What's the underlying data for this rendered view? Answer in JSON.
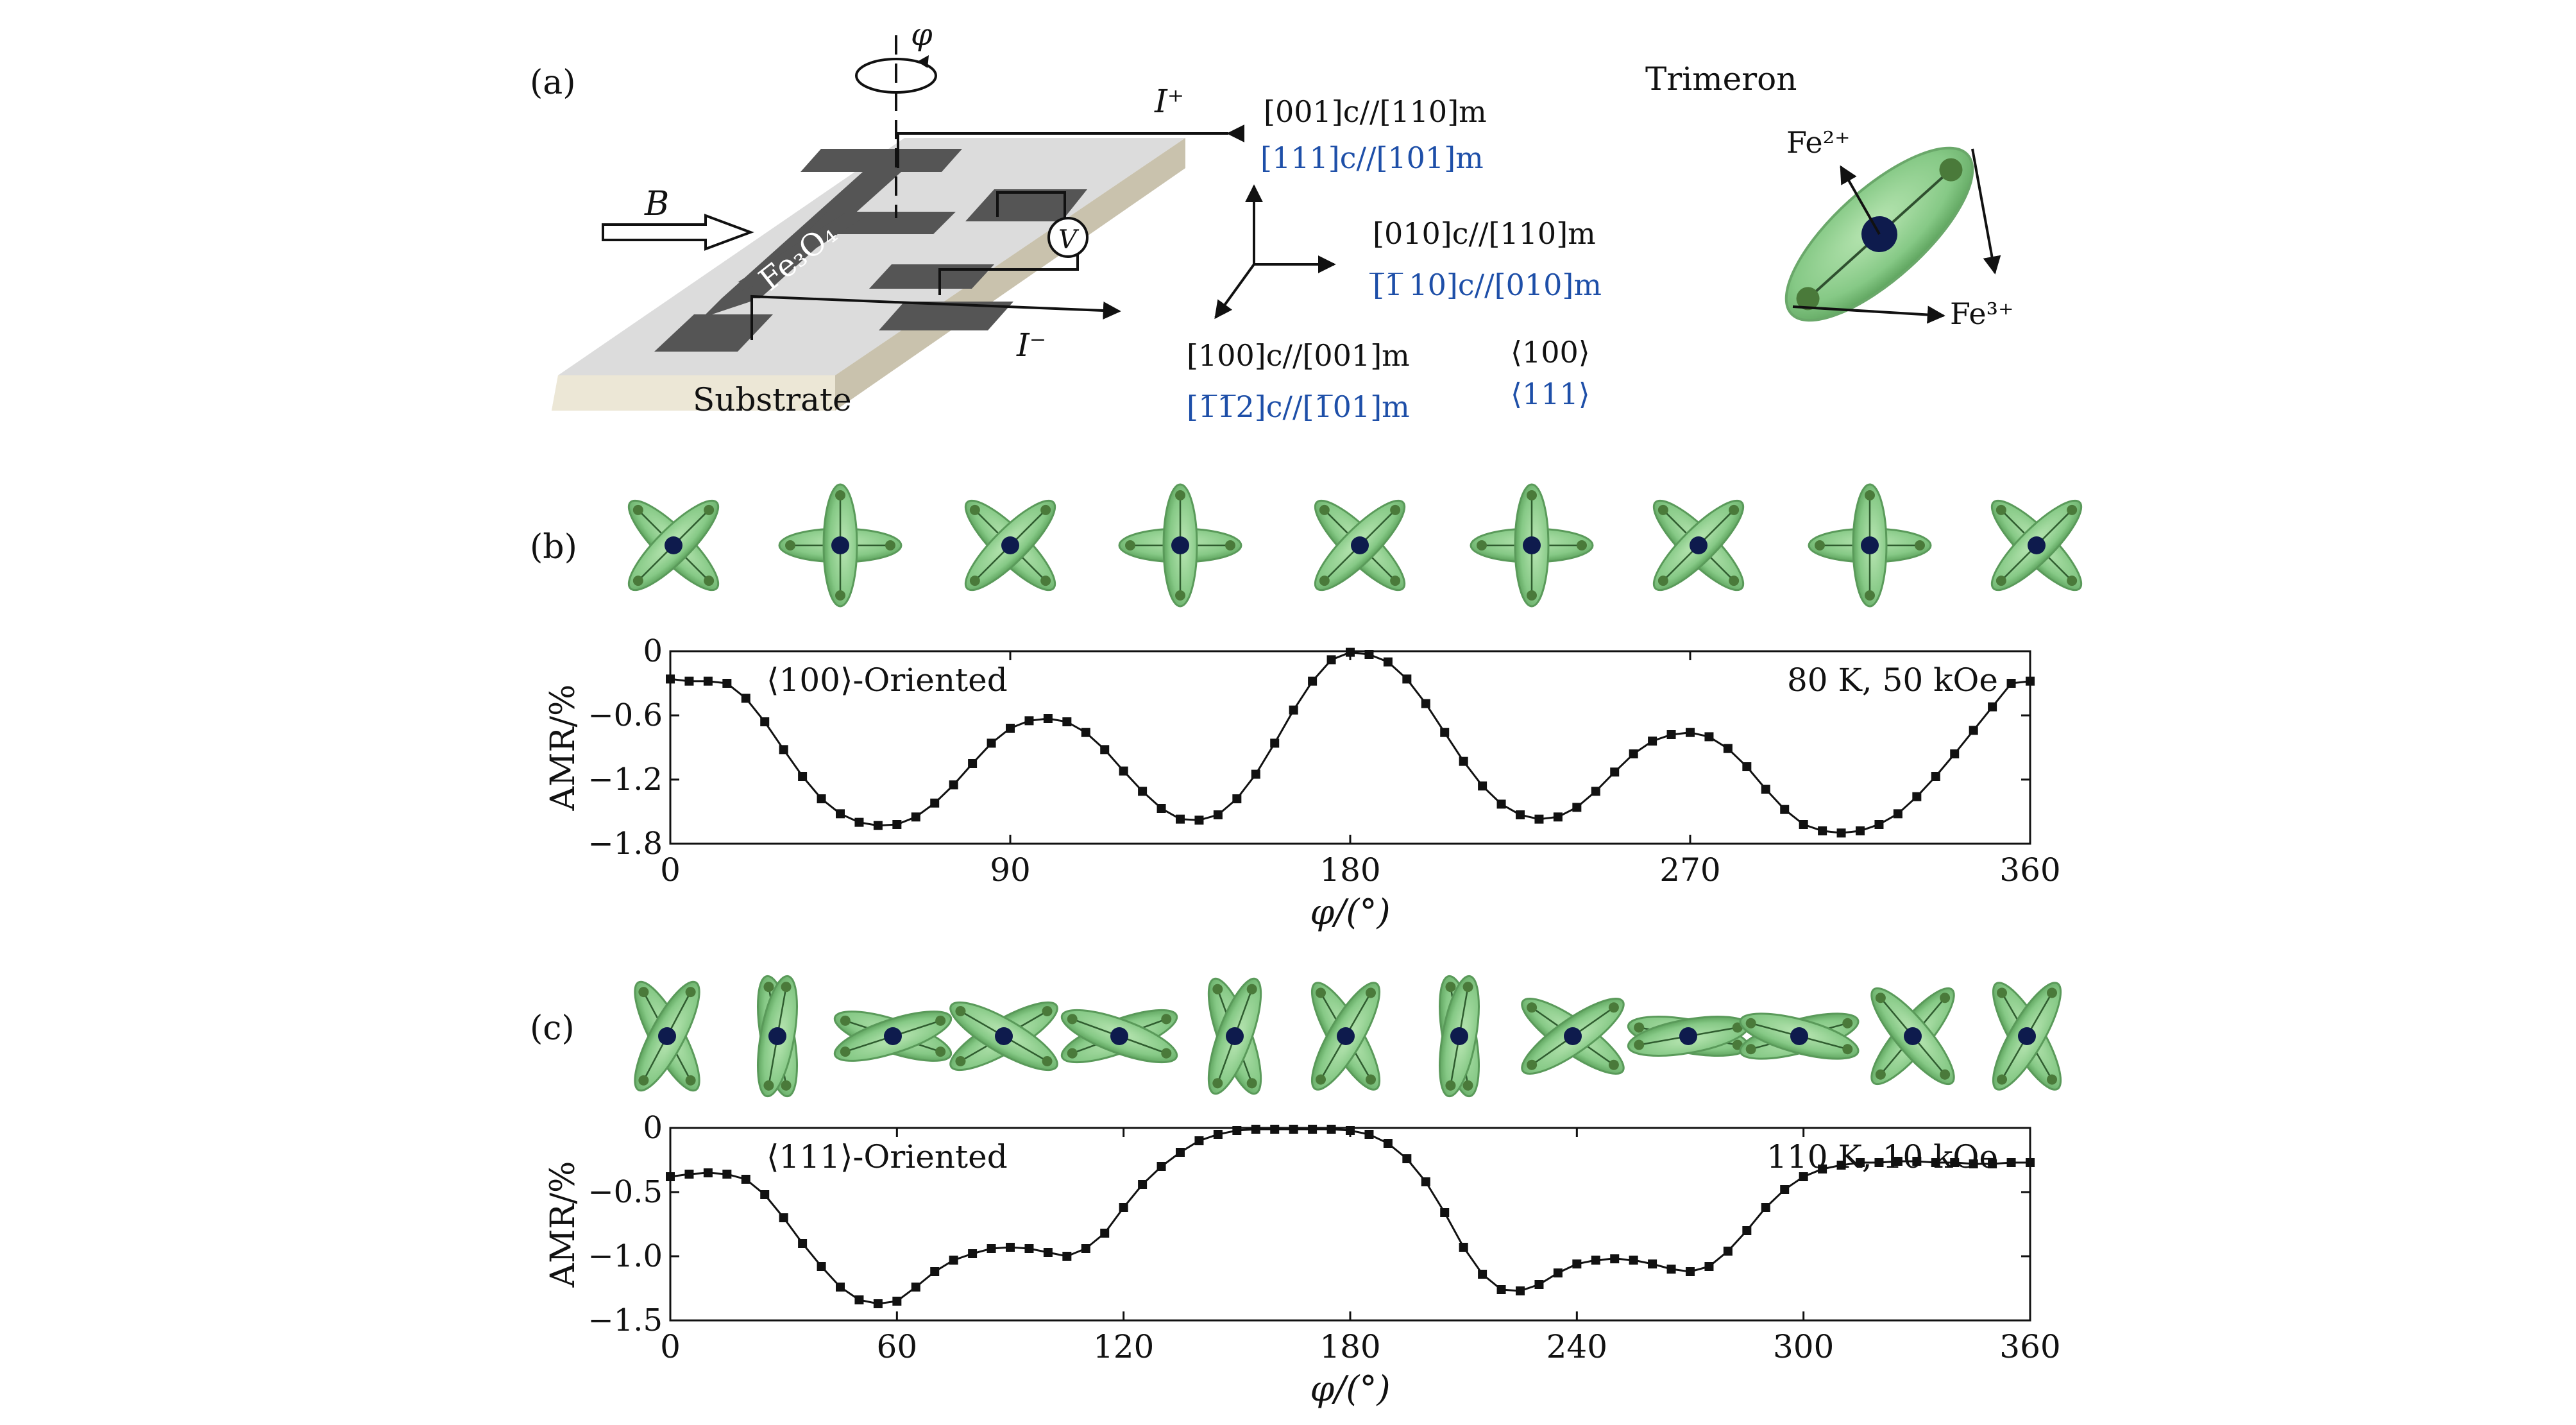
{
  "panel_a": {
    "panel_label": "(a)",
    "phi_symbol": "φ",
    "current_plus": "I⁺",
    "current_minus": "I⁻",
    "field_label": "B",
    "film_label": "Fe₃O₄",
    "voltmeter": "V",
    "substrate_label": "Substrate",
    "axes": {
      "top_black": "[001]c//[110]m",
      "top_blue": "[111]c//[101]m",
      "right_black": "[010]c//[1̅1̅ 0]m",
      "right_black_plain": "[010]c//[110]m",
      "right_blue": "[̅1̅ 10]c//[010]m",
      "bottom_black": "[100]c//[001]m",
      "bottom_blue": "[1̅1̅2]c//[1̅01]m",
      "orient_black": "⟨100⟩",
      "orient_blue": "⟨111⟩"
    },
    "trimeron_title": "Trimeron",
    "fe2": "Fe²⁺",
    "fe3": "Fe³⁺"
  },
  "panel_b_label": "(b)",
  "panel_c_label": "(c)",
  "colors": {
    "trimeron_fill": "#8ccf8c",
    "trimeron_edge": "#6aa86a",
    "center": "#0e1b4d",
    "blue_text": "#1e4fa8"
  },
  "chart_data": [
    {
      "type": "line",
      "panel": "(b)",
      "annotation_left": "⟨100⟩-Oriented",
      "annotation_right": "80 K, 50 kOe",
      "xlabel": "φ/(°)",
      "ylabel": "AMR/%",
      "xlim": [
        0,
        360
      ],
      "ylim": [
        -1.8,
        0
      ],
      "xticks": [
        0,
        90,
        180,
        270,
        360
      ],
      "yticks": [
        0,
        -0.6,
        -1.2,
        -1.8
      ],
      "ytick_labels": [
        "0",
        "−0.6",
        "−1.2",
        "−1.8"
      ],
      "x": [
        0,
        5,
        10,
        15,
        20,
        25,
        30,
        35,
        40,
        45,
        50,
        55,
        60,
        65,
        70,
        75,
        80,
        85,
        90,
        95,
        100,
        105,
        110,
        115,
        120,
        125,
        130,
        135,
        140,
        145,
        150,
        155,
        160,
        165,
        170,
        175,
        180,
        185,
        190,
        195,
        200,
        205,
        210,
        215,
        220,
        225,
        230,
        235,
        240,
        245,
        250,
        255,
        260,
        265,
        270,
        275,
        280,
        285,
        290,
        295,
        300,
        305,
        310,
        315,
        320,
        325,
        330,
        335,
        340,
        345,
        350,
        355,
        360
      ],
      "y": [
        -0.26,
        -0.28,
        -0.28,
        -0.3,
        -0.44,
        -0.66,
        -0.92,
        -1.17,
        -1.38,
        -1.52,
        -1.6,
        -1.63,
        -1.62,
        -1.55,
        -1.42,
        -1.25,
        -1.05,
        -0.86,
        -0.72,
        -0.65,
        -0.63,
        -0.66,
        -0.76,
        -0.92,
        -1.12,
        -1.31,
        -1.47,
        -1.57,
        -1.58,
        -1.53,
        -1.38,
        -1.15,
        -0.86,
        -0.55,
        -0.28,
        -0.08,
        -0.01,
        -0.03,
        -0.1,
        -0.26,
        -0.49,
        -0.76,
        -1.03,
        -1.26,
        -1.43,
        -1.53,
        -1.57,
        -1.55,
        -1.46,
        -1.31,
        -1.13,
        -0.96,
        -0.84,
        -0.78,
        -0.76,
        -0.8,
        -0.91,
        -1.08,
        -1.29,
        -1.48,
        -1.62,
        -1.68,
        -1.7,
        -1.68,
        -1.62,
        -1.52,
        -1.36,
        -1.17,
        -0.96,
        -0.74,
        -0.52,
        -0.3,
        -0.28
      ]
    },
    {
      "type": "line",
      "panel": "(c)",
      "annotation_left": "⟨111⟩-Oriented",
      "annotation_right": "110 K, 10 kOe",
      "xlabel": "φ/(°)",
      "ylabel": "AMR/%",
      "xlim": [
        0,
        360
      ],
      "ylim": [
        -1.5,
        0
      ],
      "xticks": [
        0,
        60,
        120,
        180,
        240,
        300,
        360
      ],
      "yticks": [
        0,
        -0.5,
        -1.0,
        -1.5
      ],
      "ytick_labels": [
        "0",
        "−0.5",
        "−1.0",
        "−1.5"
      ],
      "x": [
        0,
        5,
        10,
        15,
        20,
        25,
        30,
        35,
        40,
        45,
        50,
        55,
        60,
        65,
        70,
        75,
        80,
        85,
        90,
        95,
        100,
        105,
        110,
        115,
        120,
        125,
        130,
        135,
        140,
        145,
        150,
        155,
        160,
        165,
        170,
        175,
        180,
        185,
        190,
        195,
        200,
        205,
        210,
        215,
        220,
        225,
        230,
        235,
        240,
        245,
        250,
        255,
        260,
        265,
        270,
        275,
        280,
        285,
        290,
        295,
        300,
        305,
        310,
        315,
        320,
        325,
        330,
        335,
        340,
        345,
        350,
        355,
        360
      ],
      "y": [
        -0.38,
        -0.36,
        -0.35,
        -0.36,
        -0.4,
        -0.52,
        -0.7,
        -0.9,
        -1.08,
        -1.24,
        -1.34,
        -1.37,
        -1.35,
        -1.24,
        -1.12,
        -1.03,
        -0.98,
        -0.94,
        -0.93,
        -0.94,
        -0.97,
        -1.0,
        -0.94,
        -0.82,
        -0.62,
        -0.44,
        -0.3,
        -0.19,
        -0.1,
        -0.05,
        -0.02,
        -0.01,
        -0.01,
        -0.01,
        -0.01,
        -0.01,
        -0.02,
        -0.05,
        -0.12,
        -0.24,
        -0.42,
        -0.66,
        -0.93,
        -1.14,
        -1.26,
        -1.27,
        -1.22,
        -1.13,
        -1.06,
        -1.03,
        -1.02,
        -1.03,
        -1.06,
        -1.1,
        -1.12,
        -1.08,
        -0.96,
        -0.8,
        -0.62,
        -0.48,
        -0.38,
        -0.32,
        -0.29,
        -0.27,
        -0.27,
        -0.26,
        -0.26,
        -0.27,
        -0.27,
        -0.28,
        -0.28,
        -0.27,
        -0.27
      ]
    }
  ]
}
